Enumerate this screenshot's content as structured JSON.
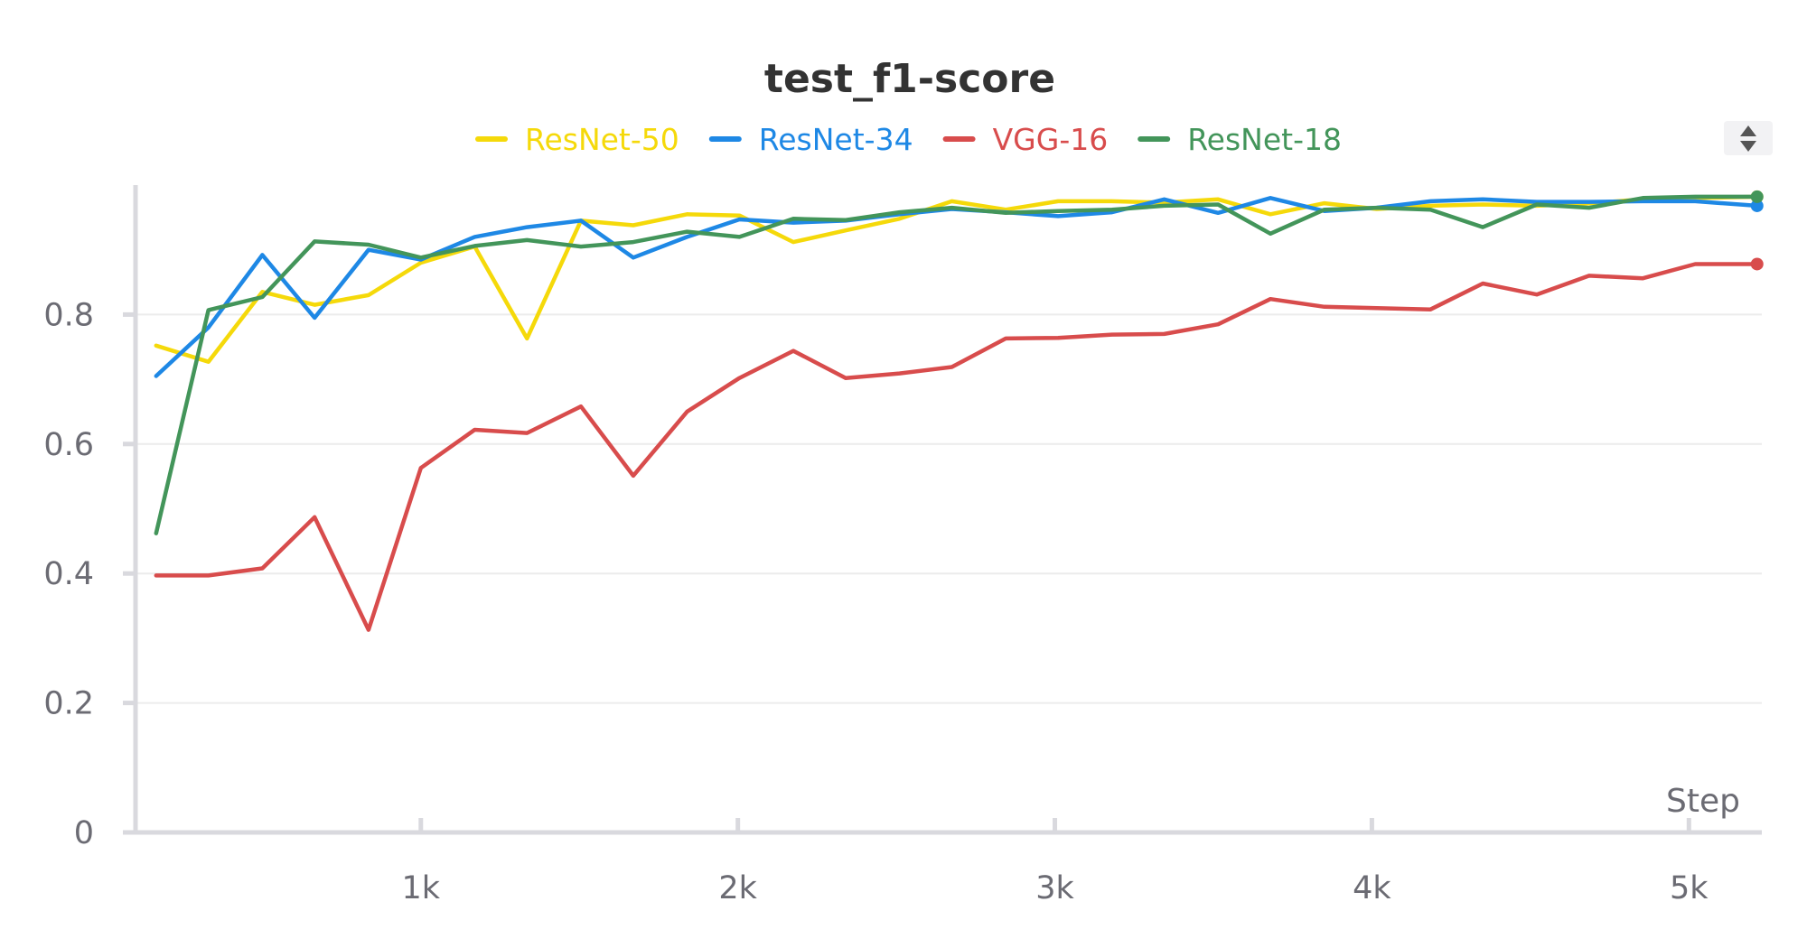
{
  "chart_data": {
    "type": "line",
    "title": "test_f1-score",
    "xlabel": "Step",
    "ylabel": "",
    "xlim": [
      100,
      5230
    ],
    "ylim": [
      0,
      1.0
    ],
    "xticks": [
      1000,
      2000,
      3000,
      4000,
      5000
    ],
    "xtick_labels": [
      "1k",
      "2k",
      "3k",
      "4k",
      "5k"
    ],
    "yticks": [
      0,
      0.2,
      0.4,
      0.6,
      0.8
    ],
    "ytick_labels": [
      "0",
      "0.2",
      "0.4",
      "0.6",
      "0.8"
    ],
    "grid": true,
    "legend_position": "top-center",
    "x": [
      165,
      330,
      500,
      665,
      835,
      1000,
      1170,
      1335,
      1505,
      1670,
      1840,
      2005,
      2175,
      2340,
      2510,
      2675,
      2845,
      3010,
      3180,
      3345,
      3515,
      3680,
      3850,
      4015,
      4185,
      4350,
      4520,
      4685,
      4855,
      5020,
      5215
    ],
    "series": [
      {
        "name": "ResNet-50",
        "color": "#f5d90a",
        "values": [
          0.752,
          0.727,
          0.835,
          0.815,
          0.83,
          0.88,
          0.905,
          0.763,
          0.945,
          0.938,
          0.955,
          0.953,
          0.912,
          0.93,
          0.948,
          0.975,
          0.962,
          0.975,
          0.975,
          0.973,
          0.978,
          0.955,
          0.972,
          0.963,
          0.968,
          0.97,
          0.968,
          0.972,
          0.978,
          0.98,
          0.982
        ]
      },
      {
        "name": "ResNet-34",
        "color": "#1e88e5",
        "values": [
          0.705,
          0.78,
          0.892,
          0.795,
          0.9,
          0.885,
          0.92,
          0.935,
          0.945,
          0.888,
          0.92,
          0.947,
          0.942,
          0.945,
          0.955,
          0.963,
          0.958,
          0.952,
          0.958,
          0.978,
          0.957,
          0.98,
          0.96,
          0.965,
          0.975,
          0.978,
          0.974,
          0.974,
          0.975,
          0.975,
          0.968
        ]
      },
      {
        "name": "VGG-16",
        "color": "#d84c4c",
        "values": [
          0.397,
          0.397,
          0.408,
          0.487,
          0.313,
          0.563,
          0.622,
          0.617,
          0.658,
          0.551,
          0.65,
          0.702,
          0.744,
          0.702,
          0.709,
          0.719,
          0.763,
          0.764,
          0.769,
          0.77,
          0.785,
          0.824,
          0.812,
          0.81,
          0.808,
          0.848,
          0.831,
          0.86,
          0.856,
          0.878,
          0.878
        ]
      },
      {
        "name": "ResNet-18",
        "color": "#43955a",
        "values": [
          0.462,
          0.807,
          0.827,
          0.913,
          0.908,
          0.888,
          0.906,
          0.915,
          0.905,
          0.912,
          0.928,
          0.92,
          0.948,
          0.946,
          0.958,
          0.965,
          0.957,
          0.96,
          0.962,
          0.968,
          0.97,
          0.925,
          0.962,
          0.965,
          0.962,
          0.935,
          0.97,
          0.965,
          0.98,
          0.982,
          0.982
        ]
      }
    ]
  }
}
